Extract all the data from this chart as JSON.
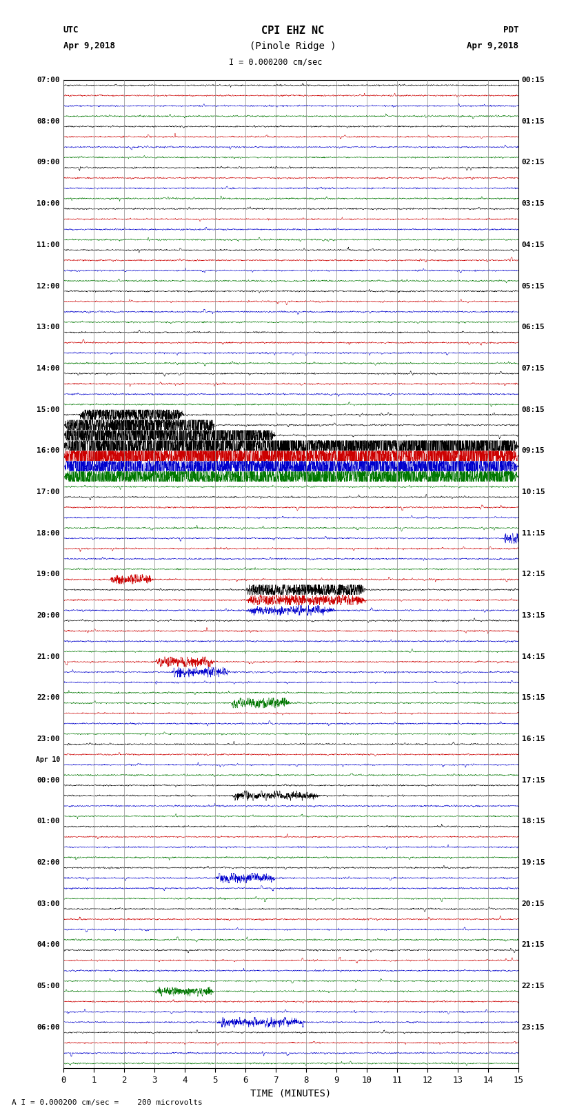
{
  "title_line1": "CPI EHZ NC",
  "title_line2": "(Pinole Ridge )",
  "scale_text": "I = 0.000200 cm/sec",
  "footer_text": "A I = 0.000200 cm/sec =    200 microvolts",
  "utc_label": "UTC",
  "utc_date": "Apr 9,2018",
  "pdt_label": "PDT",
  "pdt_date": "Apr 9,2018",
  "xlabel": "TIME (MINUTES)",
  "xmin": 0,
  "xmax": 15,
  "xticks": [
    0,
    1,
    2,
    3,
    4,
    5,
    6,
    7,
    8,
    9,
    10,
    11,
    12,
    13,
    14,
    15
  ],
  "bg_color": "#ffffff",
  "trace_colors": [
    "#000000",
    "#cc0000",
    "#0000cc",
    "#007700"
  ],
  "fig_width": 8.5,
  "fig_height": 16.13,
  "dpi": 100,
  "n_rows": 96,
  "noise_amp": 0.3,
  "left_labels": [
    [
      0,
      "07:00"
    ],
    [
      4,
      "08:00"
    ],
    [
      8,
      "09:00"
    ],
    [
      12,
      "10:00"
    ],
    [
      16,
      "11:00"
    ],
    [
      20,
      "12:00"
    ],
    [
      24,
      "13:00"
    ],
    [
      28,
      "14:00"
    ],
    [
      32,
      "15:00"
    ],
    [
      36,
      "16:00"
    ],
    [
      40,
      "17:00"
    ],
    [
      44,
      "18:00"
    ],
    [
      48,
      "19:00"
    ],
    [
      52,
      "20:00"
    ],
    [
      56,
      "21:00"
    ],
    [
      60,
      "22:00"
    ],
    [
      64,
      "23:00"
    ],
    [
      67,
      "Apr 10"
    ],
    [
      68,
      "00:00"
    ],
    [
      72,
      "01:00"
    ],
    [
      76,
      "02:00"
    ],
    [
      80,
      "03:00"
    ],
    [
      84,
      "04:00"
    ],
    [
      88,
      "05:00"
    ],
    [
      92,
      "06:00"
    ]
  ],
  "right_labels": [
    [
      0,
      "00:15"
    ],
    [
      4,
      "01:15"
    ],
    [
      8,
      "02:15"
    ],
    [
      12,
      "03:15"
    ],
    [
      16,
      "04:15"
    ],
    [
      20,
      "05:15"
    ],
    [
      24,
      "06:15"
    ],
    [
      28,
      "07:15"
    ],
    [
      32,
      "08:15"
    ],
    [
      36,
      "09:15"
    ],
    [
      40,
      "10:15"
    ],
    [
      44,
      "11:15"
    ],
    [
      48,
      "12:15"
    ],
    [
      52,
      "13:15"
    ],
    [
      56,
      "14:15"
    ],
    [
      60,
      "15:15"
    ],
    [
      64,
      "16:15"
    ],
    [
      68,
      "17:15"
    ],
    [
      72,
      "18:15"
    ],
    [
      76,
      "19:15"
    ],
    [
      80,
      "20:15"
    ],
    [
      84,
      "21:15"
    ],
    [
      88,
      "22:15"
    ],
    [
      92,
      "23:15"
    ]
  ],
  "events": [
    {
      "row": 32,
      "color_idx": 0,
      "amp": 1.5,
      "xstart": 0.5,
      "xend": 4.0
    },
    {
      "row": 33,
      "color_idx": 0,
      "amp": 2.5,
      "xstart": 0.0,
      "xend": 5.0
    },
    {
      "row": 34,
      "color_idx": 0,
      "amp": 3.0,
      "xstart": 0.0,
      "xend": 7.0
    },
    {
      "row": 35,
      "color_idx": 0,
      "amp": 3.5,
      "xstart": 0.0,
      "xend": 15.0
    },
    {
      "row": 36,
      "color_idx": 1,
      "amp": 3.0,
      "xstart": 0.0,
      "xend": 15.0
    },
    {
      "row": 37,
      "color_idx": 2,
      "amp": 2.5,
      "xstart": 0.0,
      "xend": 15.0
    },
    {
      "row": 38,
      "color_idx": 3,
      "amp": 2.0,
      "xstart": 0.0,
      "xend": 15.0
    },
    {
      "row": 44,
      "color_idx": 2,
      "amp": 0.5,
      "xstart": 14.5,
      "xend": 15.0
    },
    {
      "row": 48,
      "color_idx": 1,
      "amp": 0.6,
      "xstart": 1.5,
      "xend": 3.0
    },
    {
      "row": 49,
      "color_idx": 0,
      "amp": 1.2,
      "xstart": 6.0,
      "xend": 10.0
    },
    {
      "row": 50,
      "color_idx": 1,
      "amp": 0.8,
      "xstart": 6.0,
      "xend": 10.0
    },
    {
      "row": 51,
      "color_idx": 2,
      "amp": 0.5,
      "xstart": 6.0,
      "xend": 9.0
    },
    {
      "row": 56,
      "color_idx": 1,
      "amp": 0.6,
      "xstart": 3.0,
      "xend": 5.0
    },
    {
      "row": 57,
      "color_idx": 2,
      "amp": 0.5,
      "xstart": 3.5,
      "xend": 5.5
    },
    {
      "row": 60,
      "color_idx": 3,
      "amp": 0.6,
      "xstart": 5.5,
      "xend": 7.5
    },
    {
      "row": 69,
      "color_idx": 0,
      "amp": 0.5,
      "xstart": 5.5,
      "xend": 8.5
    },
    {
      "row": 77,
      "color_idx": 2,
      "amp": 0.5,
      "xstart": 5.0,
      "xend": 7.0
    },
    {
      "row": 88,
      "color_idx": 3,
      "amp": 0.6,
      "xstart": 3.0,
      "xend": 5.0
    },
    {
      "row": 91,
      "color_idx": 2,
      "amp": 0.5,
      "xstart": 5.0,
      "xend": 8.0
    }
  ]
}
